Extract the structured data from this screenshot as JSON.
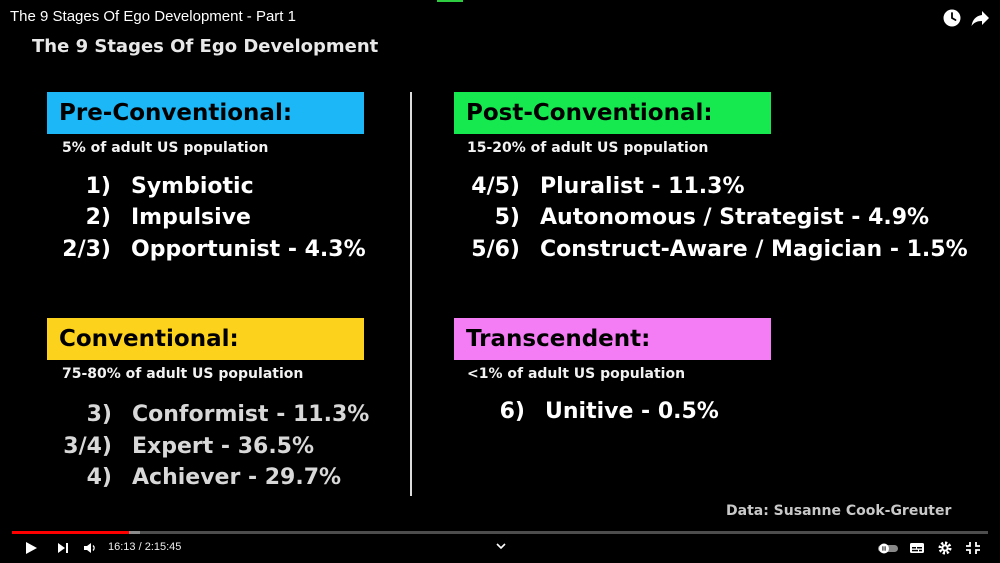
{
  "window": {
    "video_title": "The 9 Stages Of Ego Development - Part 1"
  },
  "colors": {
    "pre_conventional": "#1cb7f6",
    "post_conventional": "#16e84f",
    "conventional": "#fcd21c",
    "transcendent": "#f47cf4",
    "progress": "#ff0000"
  },
  "slide": {
    "title": "The 9 Stages Of Ego Development",
    "pre_conventional": {
      "header": "Pre-Conventional:",
      "population": "5% of adult US population",
      "stages": [
        {
          "num": "1)",
          "label": "Symbiotic"
        },
        {
          "num": "2)",
          "label": "Impulsive"
        },
        {
          "num": "2/3)",
          "label": "Opportunist - 4.3%"
        }
      ]
    },
    "conventional": {
      "header": "Conventional:",
      "population": "75-80% of adult US population",
      "stages": [
        {
          "num": "3)",
          "label": "Conformist - 11.3%"
        },
        {
          "num": "3/4)",
          "label": "Expert - 36.5%"
        },
        {
          "num": "4)",
          "label": "Achiever - 29.7%"
        }
      ]
    },
    "post_conventional": {
      "header": "Post-Conventional:",
      "population": "15-20% of adult US population",
      "stages": [
        {
          "num": "4/5)",
          "label": "Pluralist - 11.3%"
        },
        {
          "num": "5)",
          "label": "Autonomous / Strategist - 4.9%"
        },
        {
          "num": "5/6)",
          "label": "Construct-Aware / Magician - 1.5%"
        }
      ]
    },
    "transcendent": {
      "header": "Transcendent:",
      "population": "<1% of adult US population",
      "stages": [
        {
          "num": "6)",
          "label": "Unitive - 0.5%"
        }
      ]
    },
    "credit": "Data: Susanne Cook-Greuter"
  },
  "player": {
    "time": "16:13 / 2:15:45",
    "progress_fraction": 0.1195,
    "icons": {
      "play": "play-icon",
      "next": "next-icon",
      "volume": "volume-icon",
      "chapters": "chevron-down-icon",
      "autoplay": "autoplay-toggle-icon",
      "subtitles": "subtitles-icon",
      "settings": "gear-icon",
      "exit_fullscreen": "exit-fullscreen-icon",
      "watch_later": "clock-icon",
      "share": "share-icon"
    }
  }
}
